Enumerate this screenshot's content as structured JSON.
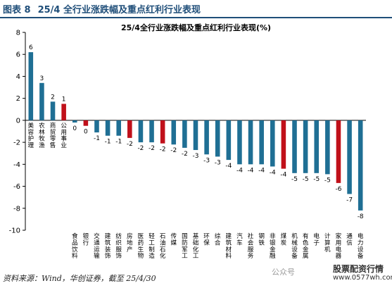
{
  "figure": {
    "label": "图表 8",
    "caption": "25/4 全行业涨跌幅及重点红利行业表现"
  },
  "source_note": "资料来源：Wind，华创证券，截至 25/4/30",
  "watermarks": {
    "account": "公众号",
    "site_name": "股票配资行情",
    "site_url": "www.0577wh.com"
  },
  "colors": {
    "default_bar": "#1f6f94",
    "highlight_bar": "#c0101a",
    "axis": "#000000"
  },
  "chart_data": {
    "type": "bar",
    "title": "25/4全行业涨跌幅及重点红利行业表现(%)",
    "xlabel": "",
    "ylabel": "",
    "ylim": [
      -10,
      8
    ],
    "yticks": [
      -10,
      -8,
      -6,
      -4,
      -2,
      0,
      2,
      4,
      6,
      8
    ],
    "grid": false,
    "legend": "none",
    "categories": [
      "美容护理",
      "农林牧渔",
      "商贸零售",
      "公用事业",
      "食品饮料",
      "银行",
      "交通运输",
      "建筑装饰",
      "纺织服饰",
      "房地产",
      "医药生物",
      "轻工制造",
      "石油石化",
      "传媒",
      "国防军工",
      "基础化工",
      "环保",
      "综合",
      "建筑材料",
      "汽车",
      "社会服务",
      "钢铁",
      "非银金融",
      "煤炭",
      "机械设备",
      "有色金属",
      "电子",
      "计算机",
      "家用电器",
      "通信",
      "电力设备"
    ],
    "values": [
      6.2,
      3.4,
      1.7,
      1.5,
      -0.2,
      -0.5,
      -1.1,
      -1.4,
      -1.4,
      -1.6,
      -2.0,
      -2.0,
      -2.1,
      -2.2,
      -2.5,
      -2.7,
      -3.1,
      -3.3,
      -3.6,
      -4.0,
      -4.0,
      -4.0,
      -4.2,
      -4.4,
      -4.8,
      -4.8,
      -4.8,
      -4.9,
      -5.7,
      -6.7,
      -8.2
    ],
    "data_labels": [
      "6",
      "3",
      "2",
      "1",
      "0",
      "0",
      "-1",
      "-1",
      "-1",
      "-2",
      "-2",
      "-2",
      "-2",
      "-2",
      "-2",
      "-3",
      "-3",
      "-3",
      "-4",
      "-4",
      "-4",
      "-4",
      "-4",
      "-4",
      "-5",
      "-5",
      "-5",
      "-5",
      "-6",
      "-7",
      "-8"
    ],
    "highlighted": [
      "公用事业",
      "银行",
      "房地产",
      "石油石化",
      "煤炭",
      "家用电器"
    ]
  }
}
